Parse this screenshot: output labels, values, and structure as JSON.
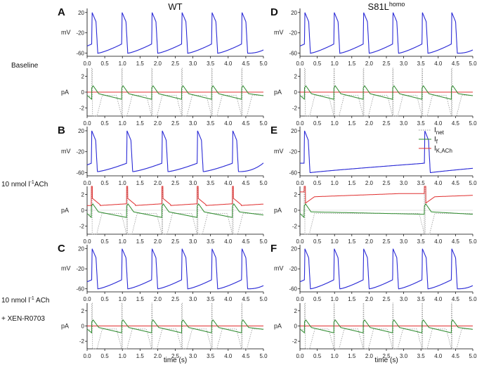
{
  "columns": [
    {
      "title": "WT",
      "sup": ""
    },
    {
      "title": "S81L",
      "sup": "homo"
    }
  ],
  "rows": [
    {
      "lines": [
        "Baseline"
      ]
    },
    {
      "lines": [
        "10 nmol l",
        "ACh"
      ],
      "sup": "-1"
    },
    {
      "lines": [
        "10 nmol l",
        " ACh",
        "+ XEN-R0703"
      ],
      "sup": "-1"
    }
  ],
  "panel_letters": [
    "A",
    "B",
    "C",
    "D",
    "E",
    "F"
  ],
  "x_label": "time (s)",
  "legend": [
    {
      "name": "I",
      "sub": "net",
      "color": "#999999",
      "dash": true
    },
    {
      "name": "I",
      "sub": "f",
      "color": "#2e8b2e",
      "dash": false
    },
    {
      "name": "I",
      "sub": "K,ACh",
      "color": "#e03030",
      "dash": false
    }
  ],
  "colors": {
    "voltage": "#2b2bd6",
    "i_net": "#999999",
    "i_f": "#2e8b2e",
    "i_kach": "#e03030"
  },
  "chart_data": [
    {
      "panel": "A",
      "type": "line",
      "column": "WT",
      "condition": "Baseline",
      "voltage": {
        "ylabel": "mV",
        "yticks": [
          20,
          -20,
          -60
        ],
        "ylim": [
          -66,
          28
        ],
        "spike_times_s": [
          0.13,
          0.98,
          1.83,
          2.68,
          3.53,
          4.38
        ],
        "min_mv": -60,
        "peak_mv": 20
      },
      "current": {
        "ylabel": "pA",
        "yticks": [
          2,
          0,
          -2
        ],
        "ylim": [
          -3,
          3
        ],
        "ikach": "flat at 0"
      },
      "xticks": [
        0.0,
        0.5,
        1.0,
        1.5,
        2.0,
        2.5,
        3.0,
        3.5,
        4.0,
        4.5,
        5.0
      ],
      "xlim": [
        0,
        5
      ]
    },
    {
      "panel": "B",
      "type": "line",
      "column": "WT",
      "condition": "10 nmol l-1 ACh",
      "voltage": {
        "ylabel": "mV",
        "yticks": [
          20,
          -20,
          -60
        ],
        "ylim": [
          -66,
          28
        ],
        "spike_times_s": [
          0.12,
          1.12,
          2.12,
          3.12,
          4.12
        ],
        "min_mv": -58,
        "peak_mv": 20
      },
      "current": {
        "ylabel": "pA",
        "yticks": [
          2,
          0,
          -2
        ],
        "ylim": [
          -3,
          3
        ],
        "ikach": "positive, 0.5-1 pA between spikes"
      },
      "xticks": [
        0.0,
        0.5,
        1.0,
        1.5,
        2.0,
        2.5,
        3.0,
        3.5,
        4.0,
        4.5,
        5.0
      ],
      "xlim": [
        0,
        5
      ]
    },
    {
      "panel": "C",
      "type": "line",
      "column": "WT",
      "condition": "10 nmol l-1 ACh + XEN-R0703",
      "voltage": {
        "ylabel": "mV",
        "yticks": [
          20,
          -20,
          -60
        ],
        "ylim": [
          -66,
          28
        ],
        "spike_times_s": [
          0.13,
          0.98,
          1.83,
          2.68,
          3.53,
          4.38
        ],
        "min_mv": -60,
        "peak_mv": 20
      },
      "current": {
        "ylabel": "pA",
        "yticks": [
          2,
          0,
          -2
        ],
        "ylim": [
          -3,
          3
        ],
        "ikach": "flat at 0"
      },
      "xticks": [
        0.0,
        0.5,
        1.0,
        1.5,
        2.0,
        2.5,
        3.0,
        3.5,
        4.0,
        4.5,
        5.0
      ],
      "xlim": [
        0,
        5
      ]
    },
    {
      "panel": "D",
      "type": "line",
      "column": "S81Lhomo",
      "condition": "Baseline",
      "voltage": {
        "ylabel": "mV",
        "yticks": [
          20,
          -20,
          -60
        ],
        "ylim": [
          -66,
          28
        ],
        "spike_times_s": [
          0.13,
          0.98,
          1.83,
          2.68,
          3.53,
          4.38
        ],
        "min_mv": -60,
        "peak_mv": 20
      },
      "current": {
        "ylabel": "pA",
        "yticks": [
          2,
          0,
          -2
        ],
        "ylim": [
          -3,
          3
        ],
        "ikach": "flat at 0"
      },
      "xticks": [
        0.0,
        0.5,
        1.0,
        1.5,
        2.0,
        2.5,
        3.0,
        3.5,
        4.0,
        4.5,
        5.0
      ],
      "xlim": [
        0,
        5
      ]
    },
    {
      "panel": "E",
      "type": "line",
      "column": "S81Lhomo",
      "condition": "10 nmol l-1 ACh",
      "voltage": {
        "ylabel": "mV",
        "yticks": [
          20,
          -20,
          -60
        ],
        "ylim": [
          -66,
          28
        ],
        "spike_times_s": [
          0.12,
          3.6
        ],
        "min_mv": -60,
        "peak_mv": 20
      },
      "current": {
        "ylabel": "pA",
        "yticks": [
          2,
          0,
          -2
        ],
        "ylim": [
          -3,
          3
        ],
        "ikach": "about 2 pA sustained"
      },
      "xticks": [
        0.0,
        0.5,
        1.0,
        1.5,
        2.0,
        2.5,
        3.0,
        3.5,
        4.0,
        4.5,
        5.0
      ],
      "xlim": [
        0,
        5
      ]
    },
    {
      "panel": "F",
      "type": "line",
      "column": "S81Lhomo",
      "condition": "10 nmol l-1 ACh + XEN-R0703",
      "voltage": {
        "ylabel": "mV",
        "yticks": [
          20,
          -20,
          -60
        ],
        "ylim": [
          -66,
          28
        ],
        "spike_times_s": [
          0.13,
          0.98,
          1.83,
          2.68,
          3.53,
          4.38
        ],
        "min_mv": -60,
        "peak_mv": 20
      },
      "current": {
        "ylabel": "pA",
        "yticks": [
          2,
          0,
          -2
        ],
        "ylim": [
          -3,
          3
        ],
        "ikach": "flat at 0"
      },
      "xticks": [
        0.0,
        0.5,
        1.0,
        1.5,
        2.0,
        2.5,
        3.0,
        3.5,
        4.0,
        4.5,
        5.0
      ],
      "xlim": [
        0,
        5
      ]
    }
  ]
}
